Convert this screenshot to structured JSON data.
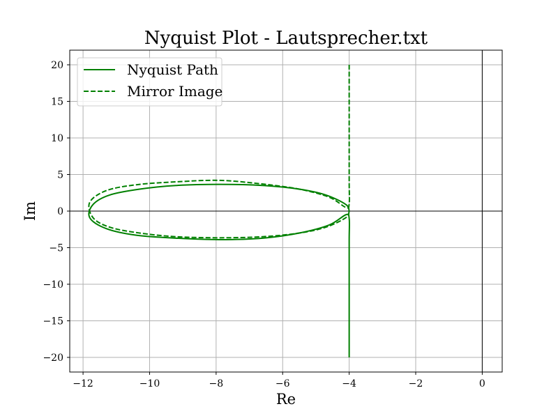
{
  "chart_data": {
    "type": "line",
    "title": "Nyquist Plot - Lautsprecher.txt",
    "xlabel": "Re",
    "ylabel": "Im",
    "xlim": [
      -12.4,
      0.6
    ],
    "ylim": [
      -22,
      22
    ],
    "x_ticks": [
      -12,
      -10,
      -8,
      -6,
      -4,
      -2,
      0
    ],
    "x_tick_labels": [
      "−12",
      "−10",
      "−8",
      "−6",
      "−4",
      "−2",
      "0"
    ],
    "y_ticks": [
      -20,
      -15,
      -10,
      -5,
      0,
      5,
      10,
      15,
      20
    ],
    "y_tick_labels": [
      "−20",
      "−15",
      "−10",
      "−5",
      "0",
      "5",
      "10",
      "15",
      "20"
    ],
    "grid": true,
    "reference_lines": {
      "x": 0,
      "y": 0
    },
    "legend": {
      "position": "upper-left",
      "entries": [
        "Nyquist Path",
        "Mirror Image"
      ]
    },
    "series": [
      {
        "name": "Nyquist Path",
        "color": "#008000",
        "linestyle": "solid",
        "x": [
          -4.0,
          -4.0,
          -4.0,
          -4.0,
          -4.1,
          -4.6,
          -5.5,
          -6.6,
          -7.9,
          -9.2,
          -10.4,
          -11.3,
          -11.8,
          -11.7,
          -11.2,
          -10.3,
          -9.2,
          -7.9,
          -6.6,
          -5.5,
          -4.7,
          -4.1,
          -4.0
        ],
        "y": [
          -20.0,
          -10.0,
          -4.0,
          -1.0,
          -0.5,
          -1.9,
          -3.0,
          -3.7,
          -3.9,
          -3.7,
          -3.3,
          -2.4,
          -0.9,
          0.9,
          2.2,
          3.0,
          3.5,
          3.65,
          3.5,
          3.0,
          2.2,
          0.9,
          0.0
        ]
      },
      {
        "name": "Mirror Image",
        "color": "#008000",
        "linestyle": "dashed",
        "x": [
          -4.0,
          -4.0,
          -4.0,
          -4.0,
          -4.1,
          -4.6,
          -5.5,
          -6.6,
          -7.9,
          -9.2,
          -10.4,
          -11.3,
          -11.8,
          -11.7,
          -11.2,
          -10.3,
          -9.2,
          -7.9,
          -6.6,
          -5.5,
          -4.7,
          -4.1,
          -4.0
        ],
        "y": [
          20.0,
          10.0,
          4.0,
          1.0,
          0.5,
          1.9,
          3.0,
          3.7,
          4.2,
          4.0,
          3.6,
          2.8,
          1.2,
          -0.9,
          -2.2,
          -3.0,
          -3.5,
          -3.65,
          -3.5,
          -3.0,
          -2.2,
          -0.9,
          0.0
        ]
      }
    ]
  }
}
